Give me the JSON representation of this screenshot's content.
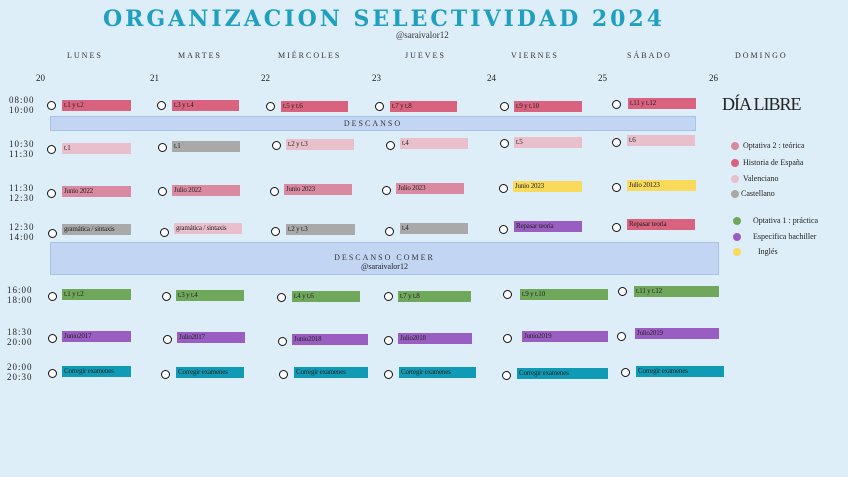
{
  "header": {
    "title": "ORGANIZACION SELECTIVIDAD 2024",
    "handle": "@saraivalor12"
  },
  "days": [
    "LUNES",
    "MARTES",
    "MIÉRCOLES",
    "JUEVES",
    "VIERNES",
    "SÁBADO",
    "DOMINGO"
  ],
  "dates": [
    "20",
    "21",
    "22",
    "23",
    "24",
    "25",
    "26"
  ],
  "times": [
    {
      "start": "08:00",
      "end": "10:00"
    },
    {
      "start": "10:30",
      "end": "11:30"
    },
    {
      "start": "11:30",
      "end": "12:30"
    },
    {
      "start": "12:30",
      "end": "14:00"
    },
    {
      "start": "16:00",
      "end": "18:00"
    },
    {
      "start": "18:30",
      "end": "20:00"
    },
    {
      "start": "20:00",
      "end": "20:30"
    }
  ],
  "breaks": {
    "descanso": "DESCANSO",
    "descanso_comer": "DESCANSO COMER",
    "handle": "@saraivalor12"
  },
  "dia_libre": "DÍA LIBRE",
  "rows": [
    [
      "t.1 y t.2",
      "t.3 y t.4",
      "t.5 y t.6",
      "t.7 y t.8",
      "t.9 y t.10",
      "t.11 y t.12"
    ],
    [
      "t.1",
      "t.1",
      "t.2 y t.3",
      "t.4",
      "t.5",
      "t.6"
    ],
    [
      "Junio 2022",
      "Julio 2022",
      "Junio 2023",
      "Julio 2023",
      "Junio 2023",
      "Julio 20123"
    ],
    [
      "gramática / sintaxis",
      "gramática / sintaxis",
      "t.2 y t.3",
      "t.4",
      "Repasar teoría",
      "Repasar teoría"
    ],
    [
      "t.1 y t.2",
      "t.3 y t.4",
      "t.4 y t.6",
      "t.7 y t.8",
      "t.9 y t.10",
      "t.11 y t.12"
    ],
    [
      "Junio2017",
      "Julio2017",
      "Junio2018",
      "Julio2018",
      "Junio2019",
      "Julio2019"
    ],
    [
      "Corregir examenes",
      "Corregir examenes",
      "Corregir examenes",
      "Corregir examenes",
      "Corregir examenes",
      "Corregir examenes"
    ]
  ],
  "legend": [
    {
      "label": "Optativa 2 : teórica",
      "color": "#d98aa0"
    },
    {
      "label": "Historia de España",
      "color": "#d9627f"
    },
    {
      "label": "Valenciano",
      "color": "#e9bfcb"
    },
    {
      "label": "Castellano",
      "color": "#a9a9a9"
    },
    {
      "label": "Optativa 1 : práctica",
      "color": "#6fa85a"
    },
    {
      "label": "Especifica bachiller",
      "color": "#9a5ec2"
    },
    {
      "label": "Inglés",
      "color": "#fada5a"
    }
  ]
}
